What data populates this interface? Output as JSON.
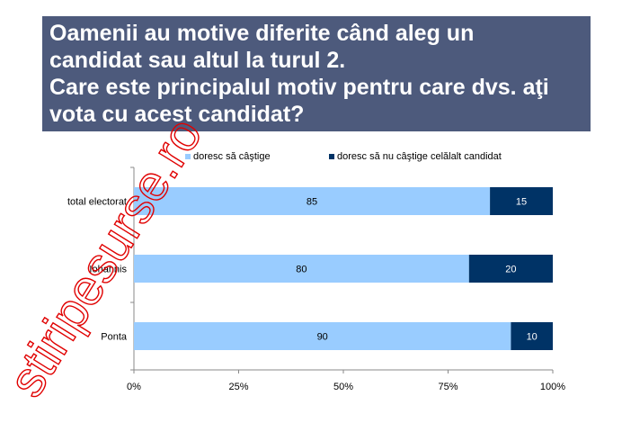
{
  "header": {
    "lines": [
      "Oamenii au motive diferite când aleg un",
      "candidat sau altul la turul 2.",
      "Care este principalul motiv pentru care dvs. aţi",
      "vota cu acest candidat?"
    ]
  },
  "chart_data": {
    "type": "bar",
    "orientation": "horizontal",
    "stacked": true,
    "categories": [
      "total electorat",
      "Iohannis",
      "Ponta"
    ],
    "series": [
      {
        "name": "doresc să câştige",
        "values": [
          85,
          80,
          90
        ],
        "color": "#99ccff"
      },
      {
        "name": "doresc să nu câştige celălalt candidat",
        "values": [
          15,
          20,
          10
        ],
        "color": "#003366"
      }
    ],
    "xlim": [
      0,
      100
    ],
    "xticks": [
      "0%",
      "25%",
      "50%",
      "75%",
      "100%"
    ],
    "grid": false,
    "legend": "top"
  },
  "watermark": {
    "text": "stiripesurse.ro",
    "color": "#e00000"
  }
}
